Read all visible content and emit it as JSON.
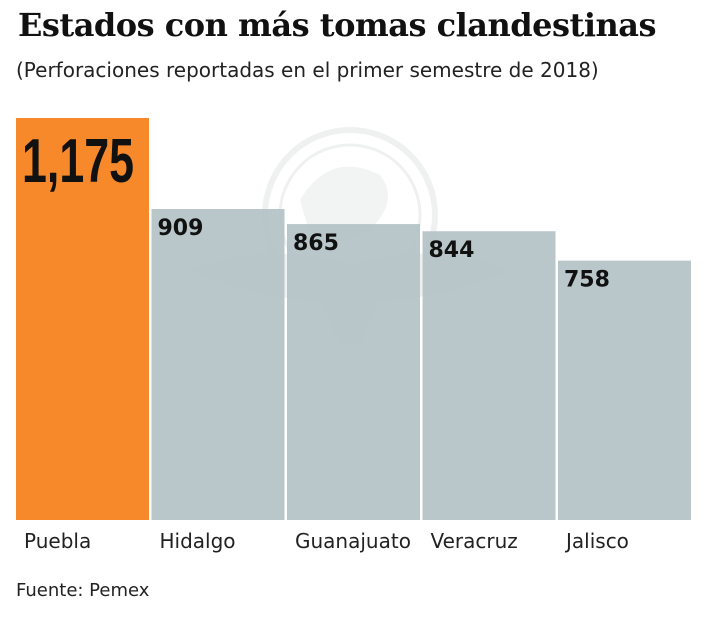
{
  "title": "Estados con más tomas clandestinas",
  "subtitle": "(Perforaciones reportadas en el primer semestre de 2018)",
  "source": "Fuente: Pemex",
  "colors": {
    "highlight": "#f7892a",
    "bar": "#b3c2c7",
    "text": "#111111",
    "watermark": "#e9ecec"
  },
  "chart_data": {
    "type": "bar",
    "categories": [
      "Puebla",
      "Hidalgo",
      "Guanajuato",
      "Veracruz",
      "Jalisco"
    ],
    "values": [
      1175,
      909,
      865,
      844,
      758
    ],
    "data_labels": [
      "1,175",
      "909",
      "865",
      "844",
      "758"
    ],
    "highlight_index": 0,
    "ylim": [
      0,
      1175
    ],
    "grid": false,
    "legend": "none"
  }
}
